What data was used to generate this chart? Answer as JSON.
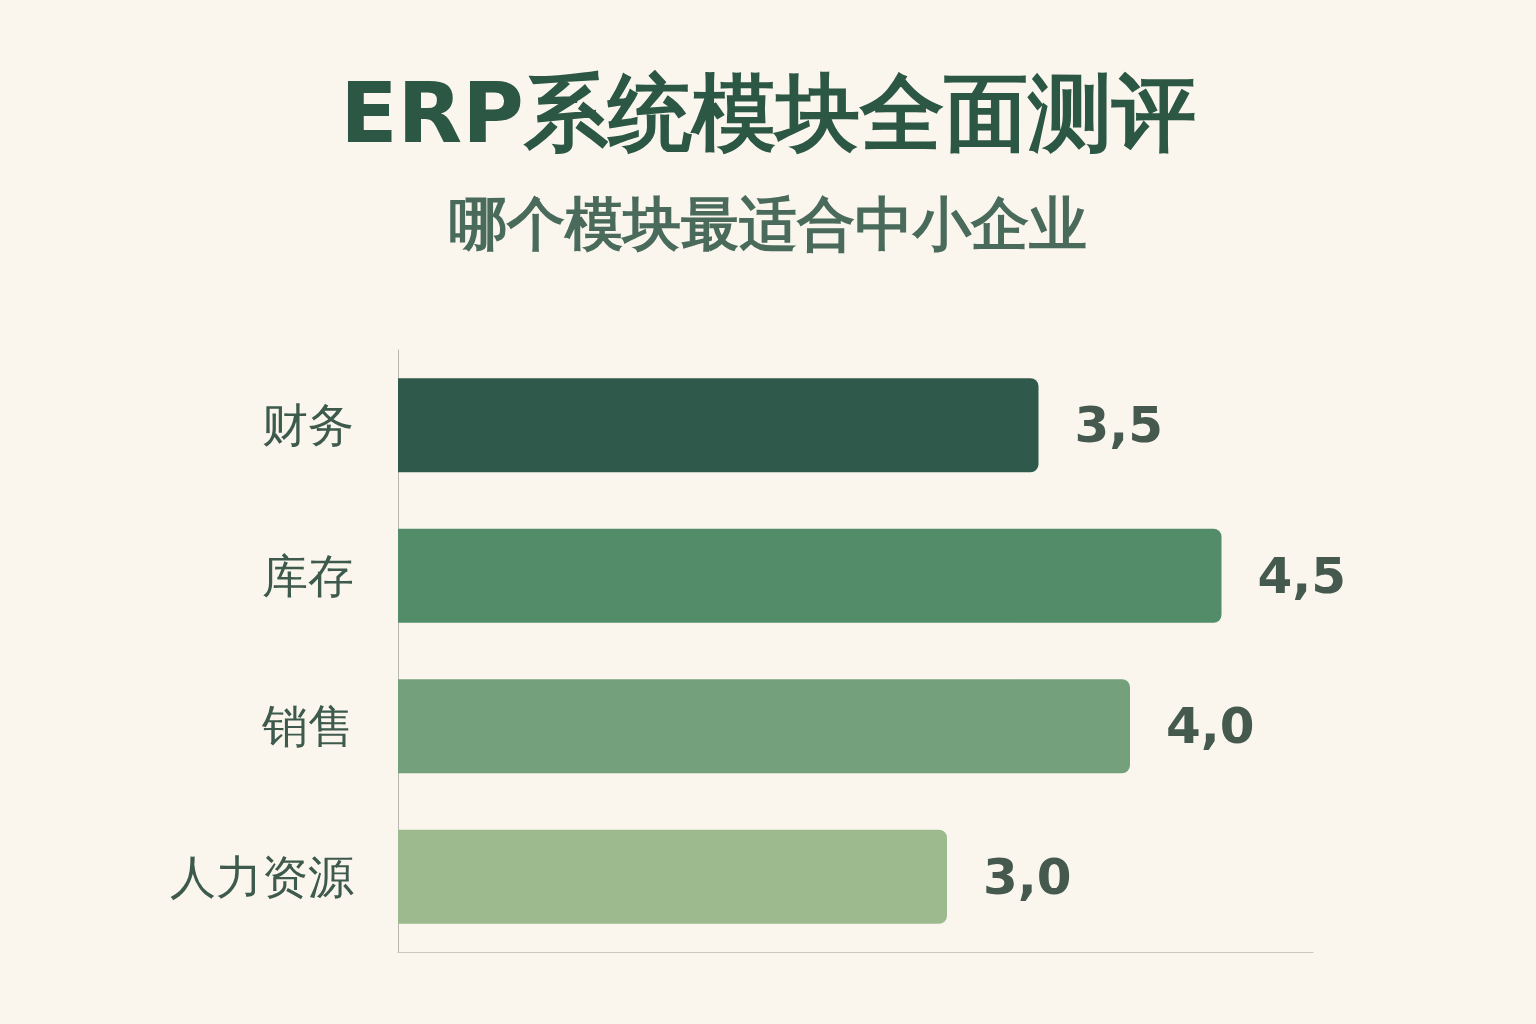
{
  "chart_data": {
    "type": "bar",
    "orientation": "horizontal",
    "title": "ERP系统模块全面测评",
    "subtitle": "哪个模块最适合中小企业",
    "categories": [
      "财务",
      "库存",
      "销售",
      "人力资源"
    ],
    "values": [
      3.5,
      4.5,
      4.0,
      3.0
    ],
    "colors": [
      "#2f5a4b",
      "#528c69",
      "#74a07b",
      "#9dba8f"
    ],
    "value_labels": [
      "3,5",
      "4,5",
      "4,0",
      "3,0"
    ],
    "tick_labels": "y"
  }
}
